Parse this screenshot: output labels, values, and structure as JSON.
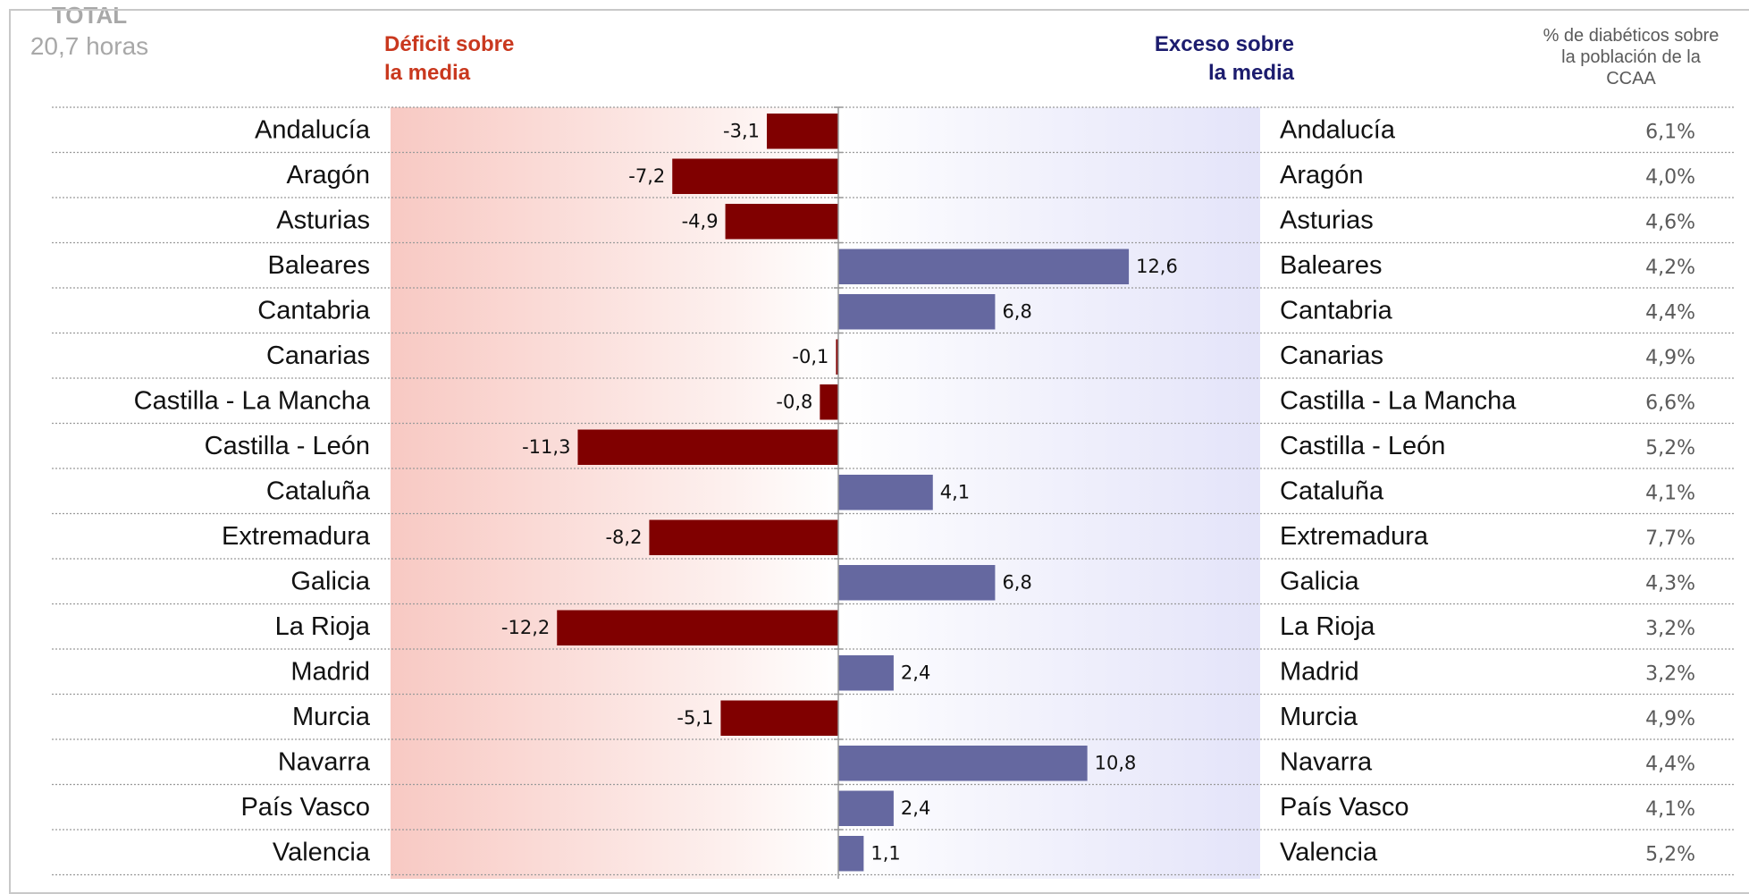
{
  "headers": {
    "deficit_line1": "Déficit sobre",
    "deficit_line2": "la media",
    "total_title": "TOTAL",
    "total_value": "20,7 horas",
    "exceso_line1": "Exceso sobre",
    "exceso_line2": "la media",
    "pct_header_line1": "% de diabéticos sobre",
    "pct_header_line2": "la población de la",
    "pct_header_line3": "CCAA"
  },
  "colors": {
    "deficit_bar": "#800000",
    "exceso_bar": "#6568a0",
    "deficit_header": "#c9381e",
    "exceso_header": "#1c1c6e",
    "deficit_band": "#f8c9c3",
    "exceso_band": "#e6e6fa"
  },
  "chart_data": {
    "type": "bar",
    "orientation": "horizontal",
    "baseline_label": "20,7 horas",
    "categories": [
      "Andalucía",
      "Aragón",
      "Asturias",
      "Baleares",
      "Cantabria",
      "Canarias",
      "Castilla - La Mancha",
      "Castilla - León",
      "Cataluña",
      "Extremadura",
      "Galicia",
      "La Rioja",
      "Madrid",
      "Murcia",
      "Navarra",
      "País Vasco",
      "Valencia"
    ],
    "values": [
      -3.1,
      -7.2,
      -4.9,
      12.6,
      6.8,
      -0.1,
      -0.8,
      -11.3,
      4.1,
      -8.2,
      6.8,
      -12.2,
      2.4,
      -5.1,
      10.8,
      2.4,
      1.1
    ],
    "value_labels": [
      "-3,1",
      "-7,2",
      "-4,9",
      "12,6",
      "6,8",
      "-0,1",
      "-0,8",
      "-11,3",
      "4,1",
      "-8,2",
      "6,8",
      "-12,2",
      "2,4",
      "-5,1",
      "10,8",
      "2,4",
      "1,1"
    ],
    "pct_diabeticos": [
      "6,1%",
      "4,0%",
      "4,6%",
      "4,2%",
      "4,4%",
      "4,9%",
      "6,6%",
      "5,2%",
      "4,1%",
      "7,7%",
      "4,3%",
      "3,2%",
      "3,2%",
      "4,9%",
      "4,4%",
      "4,1%",
      "5,2%"
    ],
    "xlim": [
      -20,
      20
    ],
    "grid": true
  }
}
